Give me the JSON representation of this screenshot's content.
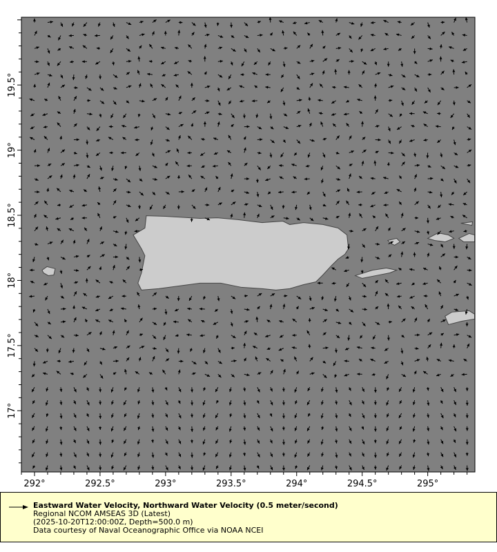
{
  "chart_data": {
    "type": "vector",
    "xlim": [
      291.9,
      295.36
    ],
    "ylim": [
      16.53,
      20.02
    ],
    "x_ticks": [
      292,
      292.5,
      293,
      293.5,
      294,
      294.5,
      295
    ],
    "x_tick_labels": [
      "292°",
      "292.5°",
      "293°",
      "293.5°",
      "294°",
      "294.5°",
      "295°"
    ],
    "y_ticks": [
      17,
      17.5,
      18,
      18.5,
      19,
      19.5
    ],
    "y_tick_labels": [
      "17°",
      "17.5°",
      "18°",
      "18.5°",
      "19°",
      "19.5°"
    ],
    "grid_step_deg": 0.1,
    "reference_vector_mps": 0.5,
    "colors": {
      "ocean": "#808080",
      "land": "#cccccc",
      "coast": "#444444",
      "arrows": "#000000",
      "legend_bg": "#ffffcc"
    },
    "land": [
      {
        "name": "Puerto Rico",
        "coords": [
          [
            292.753,
            18.349
          ],
          [
            292.842,
            18.402
          ],
          [
            292.853,
            18.497
          ],
          [
            293.0,
            18.492
          ],
          [
            293.263,
            18.476
          ],
          [
            293.395,
            18.481
          ],
          [
            293.553,
            18.466
          ],
          [
            293.737,
            18.444
          ],
          [
            293.895,
            18.455
          ],
          [
            293.947,
            18.429
          ],
          [
            294.053,
            18.444
          ],
          [
            294.2,
            18.429
          ],
          [
            294.316,
            18.402
          ],
          [
            294.384,
            18.349
          ],
          [
            294.395,
            18.243
          ],
          [
            294.368,
            18.201
          ],
          [
            294.316,
            18.164
          ],
          [
            294.263,
            18.111
          ],
          [
            294.2,
            18.042
          ],
          [
            294.147,
            17.989
          ],
          [
            294.053,
            17.968
          ],
          [
            293.947,
            17.937
          ],
          [
            293.842,
            17.926
          ],
          [
            293.737,
            17.937
          ],
          [
            293.579,
            17.947
          ],
          [
            293.421,
            17.979
          ],
          [
            293.263,
            17.979
          ],
          [
            293.105,
            17.958
          ],
          [
            292.947,
            17.937
          ],
          [
            292.816,
            17.926
          ],
          [
            292.789,
            17.979
          ],
          [
            292.816,
            18.058
          ],
          [
            292.832,
            18.138
          ],
          [
            292.842,
            18.19
          ],
          [
            292.816,
            18.243
          ]
        ]
      },
      {
        "name": "Mona",
        "coords": [
          [
            292.058,
            18.079
          ],
          [
            292.095,
            18.106
          ],
          [
            292.158,
            18.09
          ],
          [
            292.147,
            18.042
          ],
          [
            292.105,
            18.037
          ],
          [
            292.068,
            18.058
          ]
        ]
      },
      {
        "name": "Vieques",
        "coords": [
          [
            294.447,
            18.037
          ],
          [
            294.579,
            18.079
          ],
          [
            294.684,
            18.095
          ],
          [
            294.763,
            18.079
          ],
          [
            294.711,
            18.058
          ],
          [
            294.605,
            18.037
          ],
          [
            294.5,
            18.016
          ]
        ]
      },
      {
        "name": "Culebra",
        "coords": [
          [
            294.695,
            18.307
          ],
          [
            294.763,
            18.323
          ],
          [
            294.789,
            18.296
          ],
          [
            294.747,
            18.27
          ],
          [
            294.716,
            18.286
          ]
        ]
      },
      {
        "name": "St Thomas",
        "coords": [
          [
            295.0,
            18.323
          ],
          [
            295.079,
            18.365
          ],
          [
            295.158,
            18.349
          ],
          [
            295.2,
            18.323
          ],
          [
            295.132,
            18.296
          ],
          [
            295.053,
            18.307
          ]
        ]
      },
      {
        "name": "St John",
        "coords": [
          [
            295.237,
            18.323
          ],
          [
            295.316,
            18.36
          ],
          [
            295.358,
            18.349
          ],
          [
            295.358,
            18.296
          ],
          [
            295.274,
            18.296
          ]
        ]
      },
      {
        "name": "Tortola",
        "coords": [
          [
            295.253,
            18.439
          ],
          [
            295.342,
            18.45
          ],
          [
            295.337,
            18.423
          ]
        ]
      },
      {
        "name": "St Croix",
        "coords": [
          [
            295.132,
            17.725
          ],
          [
            295.184,
            17.757
          ],
          [
            295.316,
            17.767
          ],
          [
            295.358,
            17.741
          ],
          [
            295.358,
            17.704
          ],
          [
            295.263,
            17.688
          ],
          [
            295.158,
            17.661
          ]
        ]
      }
    ]
  },
  "legend": {
    "title": "Eastward Water Velocity, Northward Water Velocity (0.5 meter/second)",
    "dataset": "Regional NCOM AMSEAS 3D (Latest)",
    "time_depth": "(2025-10-20T12:00:00Z, Depth=500.0 m)",
    "credit": "Data courtesy of Naval Oceanographic Office via NOAA NCEI"
  }
}
